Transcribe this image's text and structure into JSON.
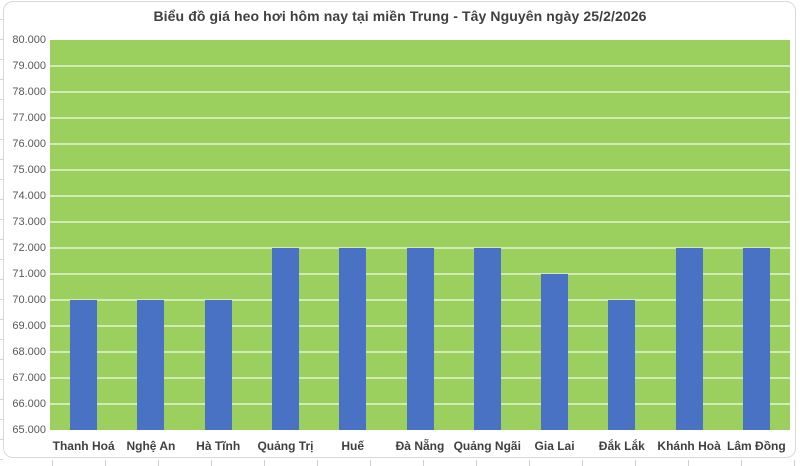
{
  "chart_data": {
    "type": "bar",
    "title": "Biểu đồ giá heo hơi hôm nay tại miền Trung - Tây Nguyên ngày 25/2/2026",
    "categories": [
      "Thanh Hoá",
      "Nghệ An",
      "Hà Tĩnh",
      "Quảng Trị",
      "Huế",
      "Đà Nẵng",
      "Quảng Ngãi",
      "Gia Lai",
      "Đắk Lắk",
      "Khánh Hoà",
      "Lâm Đồng"
    ],
    "values": [
      70000,
      70000,
      70000,
      72000,
      72000,
      72000,
      72000,
      71000,
      70000,
      72000,
      72000
    ],
    "xlabel": "",
    "ylabel": "",
    "ylim": [
      65000,
      80000
    ],
    "ytick_step": 1000,
    "ytick_labels": [
      "65.000",
      "66.000",
      "67.000",
      "68.000",
      "69.000",
      "70.000",
      "71.000",
      "72.000",
      "73.000",
      "74.000",
      "75.000",
      "76.000",
      "77.000",
      "78.000",
      "79.000",
      "80.000"
    ],
    "grid": "on",
    "legend": "none",
    "colors": {
      "bar": "#4a72c4",
      "plot_background": "#9cd05e",
      "gridline": "rgba(255,255,255,0.55)",
      "title_text": "#404040",
      "axis_text": "#595959",
      "category_text": "#404040",
      "frame_border": "#d9d9d9",
      "frame_background": "#ffffff"
    }
  }
}
